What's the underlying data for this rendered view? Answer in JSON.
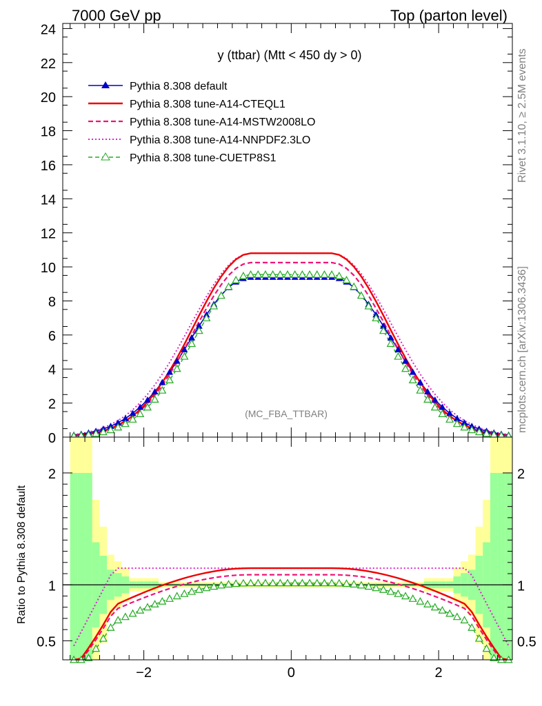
{
  "header": {
    "left": "7000 GeV pp",
    "right": "Top (parton level)"
  },
  "side": {
    "rivet": "Rivet 3.1.10, ≥ 2.5M events",
    "mcplots": "mcplots.cern.ch [arXiv:1306.3436]"
  },
  "plot_title": "y (ttbar) (Mtt < 450 dy > 0)",
  "analysis_tag": "(MC_FBA_TTBAR)",
  "ratio_ylabel": "Ratio to Pythia 8.308 default",
  "legend": [
    {
      "label": "Pythia 8.308 default",
      "color": "#0000cc",
      "style": "solid-triangle"
    },
    {
      "label": "Pythia 8.308 tune-A14-CTEQL1",
      "color": "#ee0000",
      "style": "solid"
    },
    {
      "label": "Pythia 8.308 tune-A14-MSTW2008LO",
      "color": "#ee1177",
      "style": "dashed"
    },
    {
      "label": "Pythia 8.308 tune-A14-NNPDF2.3LO",
      "color": "#dd22cc",
      "style": "dotted"
    },
    {
      "label": "Pythia 8.308 tune-CUETP8S1",
      "color": "#22aa22",
      "style": "dashed-open-triangle"
    }
  ],
  "chart_data": {
    "type": "line",
    "x_range": [
      -3.1,
      3.0
    ],
    "main": {
      "ylim": [
        0,
        24.3
      ],
      "yticks": [
        "0",
        "2",
        "4",
        "6",
        "8",
        "10",
        "12",
        "14",
        "16",
        "18",
        "20",
        "22",
        "24"
      ],
      "series": {
        "default": {
          "amp": 9.4,
          "sigma": 0.82,
          "flat": 0.55
        },
        "cteql1": {
          "amp": 10.8,
          "sigma": 0.77,
          "flat": 0.55
        },
        "mstw": {
          "amp": 10.25,
          "sigma": 0.77,
          "flat": 0.55
        },
        "nnpdf": {
          "amp": 10.8,
          "sigma": 0.82,
          "flat": 0.55
        },
        "cuetp8s1": {
          "amp": 9.55,
          "sigma": 0.76,
          "flat": 0.55
        }
      }
    },
    "ratio": {
      "ylim": [
        0.33,
        2.32
      ],
      "yticks": [
        "0.5",
        "1",
        "2"
      ],
      "xticks": [
        "−2",
        "0",
        "2"
      ]
    }
  }
}
